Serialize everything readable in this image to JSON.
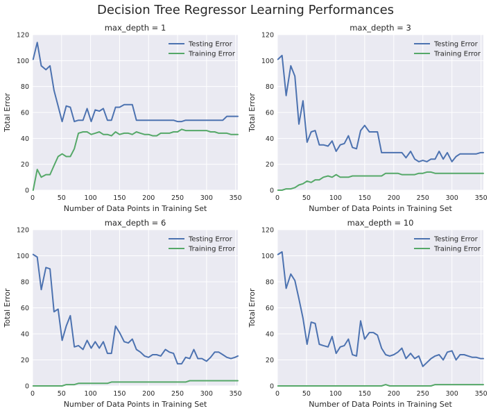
{
  "figure": {
    "title": "Decision Tree Regressor Learning Performances"
  },
  "chart_data": [
    {
      "type": "line",
      "title": "max_depth = 1",
      "xlabel": "Number of Data Points in Training Set",
      "ylabel": "Total Error",
      "xlim": [
        0,
        354
      ],
      "ylim": [
        0,
        120
      ],
      "xticks": [
        0,
        50,
        100,
        150,
        200,
        250,
        300,
        350
      ],
      "yticks": [
        0,
        20,
        40,
        60,
        80,
        100,
        120
      ],
      "grid": true,
      "legend": "top-right",
      "x": [
        1,
        8,
        15,
        23,
        30,
        37,
        44,
        51,
        58,
        65,
        72,
        79,
        87,
        94,
        101,
        108,
        115,
        122,
        129,
        136,
        143,
        150,
        158,
        165,
        172,
        179,
        186,
        193,
        200,
        207,
        214,
        221,
        229,
        236,
        243,
        250,
        257,
        264,
        271,
        278,
        285,
        292,
        300,
        307,
        314,
        321,
        328,
        335,
        342,
        349,
        354
      ],
      "series": [
        {
          "name": "Testing Error",
          "color": "#4c72b0",
          "values": [
            101,
            114,
            96,
            93,
            96,
            77,
            65,
            53,
            65,
            64,
            53,
            54,
            54,
            63,
            53,
            62,
            61,
            63,
            54,
            54,
            64,
            64,
            66,
            66,
            66,
            54,
            54,
            54,
            54,
            54,
            54,
            54,
            54,
            54,
            54,
            53,
            53,
            54,
            54,
            54,
            54,
            54,
            54,
            54,
            54,
            54,
            54,
            57,
            57,
            57,
            57
          ]
        },
        {
          "name": "Training Error",
          "color": "#55a868",
          "values": [
            0,
            16,
            10,
            12,
            12,
            19,
            26,
            28,
            26,
            26,
            32,
            44,
            45,
            45,
            43,
            44,
            45,
            43,
            43,
            42,
            45,
            43,
            44,
            44,
            43,
            45,
            44,
            43,
            43,
            42,
            42,
            44,
            44,
            44,
            45,
            45,
            47,
            46,
            46,
            46,
            46,
            46,
            46,
            45,
            45,
            44,
            44,
            44,
            43,
            43,
            43
          ]
        }
      ]
    },
    {
      "type": "line",
      "title": "max_depth = 3",
      "xlabel": "Number of Data Points in Training Set",
      "ylabel": "Total Error",
      "xlim": [
        0,
        354
      ],
      "ylim": [
        0,
        120
      ],
      "xticks": [
        0,
        50,
        100,
        150,
        200,
        250,
        300,
        350
      ],
      "yticks": [
        0,
        20,
        40,
        60,
        80,
        100,
        120
      ],
      "grid": true,
      "legend": "top-right",
      "x": [
        1,
        8,
        15,
        23,
        30,
        37,
        44,
        51,
        58,
        65,
        72,
        79,
        87,
        94,
        101,
        108,
        115,
        122,
        129,
        136,
        143,
        150,
        158,
        165,
        172,
        179,
        186,
        193,
        200,
        207,
        214,
        221,
        229,
        236,
        243,
        250,
        257,
        264,
        271,
        278,
        285,
        292,
        300,
        307,
        314,
        321,
        328,
        335,
        342,
        349,
        354
      ],
      "series": [
        {
          "name": "Testing Error",
          "color": "#4c72b0",
          "values": [
            101,
            104,
            73,
            96,
            88,
            51,
            69,
            37,
            45,
            46,
            35,
            35,
            34,
            38,
            30,
            35,
            36,
            42,
            33,
            32,
            46,
            50,
            45,
            45,
            45,
            29,
            29,
            29,
            29,
            29,
            29,
            25,
            30,
            24,
            22,
            23,
            22,
            24,
            24,
            30,
            24,
            29,
            22,
            26,
            28,
            28,
            28,
            28,
            28,
            29,
            29
          ]
        },
        {
          "name": "Training Error",
          "color": "#55a868",
          "values": [
            0,
            0,
            1,
            1,
            2,
            4,
            5,
            7,
            6,
            8,
            8,
            10,
            11,
            10,
            12,
            10,
            10,
            10,
            11,
            11,
            11,
            11,
            11,
            11,
            11,
            11,
            13,
            13,
            13,
            13,
            12,
            12,
            12,
            12,
            13,
            13,
            14,
            14,
            13,
            13,
            13,
            13,
            13,
            13,
            13,
            13,
            13,
            13,
            13,
            13,
            13
          ]
        }
      ]
    },
    {
      "type": "line",
      "title": "max_depth = 6",
      "xlabel": "Number of Data Points in Training Set",
      "ylabel": "Total Error",
      "xlim": [
        0,
        354
      ],
      "ylim": [
        0,
        120
      ],
      "xticks": [
        0,
        50,
        100,
        150,
        200,
        250,
        300,
        350
      ],
      "yticks": [
        0,
        20,
        40,
        60,
        80,
        100,
        120
      ],
      "grid": true,
      "legend": "top-right",
      "x": [
        1,
        8,
        15,
        23,
        30,
        37,
        44,
        51,
        58,
        65,
        72,
        79,
        87,
        94,
        101,
        108,
        115,
        122,
        129,
        136,
        143,
        150,
        158,
        165,
        172,
        179,
        186,
        193,
        200,
        207,
        214,
        221,
        229,
        236,
        243,
        250,
        257,
        264,
        271,
        278,
        285,
        292,
        300,
        307,
        314,
        321,
        328,
        335,
        342,
        349,
        354
      ],
      "series": [
        {
          "name": "Testing Error",
          "color": "#4c72b0",
          "values": [
            101,
            99,
            74,
            91,
            90,
            57,
            59,
            35,
            46,
            54,
            30,
            31,
            28,
            35,
            29,
            34,
            29,
            34,
            25,
            25,
            46,
            41,
            34,
            33,
            36,
            28,
            26,
            23,
            22,
            24,
            24,
            23,
            28,
            26,
            25,
            17,
            17,
            22,
            21,
            28,
            21,
            21,
            19,
            22,
            26,
            26,
            24,
            22,
            21,
            22,
            23
          ]
        },
        {
          "name": "Training Error",
          "color": "#55a868",
          "values": [
            0,
            0,
            0,
            0,
            0,
            0,
            0,
            0,
            1,
            1,
            1,
            2,
            2,
            2,
            2,
            2,
            2,
            2,
            2,
            3,
            3,
            3,
            3,
            3,
            3,
            3,
            3,
            3,
            3,
            3,
            3,
            3,
            3,
            3,
            3,
            3,
            3,
            3,
            4,
            4,
            4,
            4,
            4,
            4,
            4,
            4,
            4,
            4,
            4,
            4,
            4
          ]
        }
      ]
    },
    {
      "type": "line",
      "title": "max_depth = 10",
      "xlabel": "Number of Data Points in Training Set",
      "ylabel": "Total Error",
      "xlim": [
        0,
        354
      ],
      "ylim": [
        0,
        120
      ],
      "xticks": [
        0,
        50,
        100,
        150,
        200,
        250,
        300,
        350
      ],
      "yticks": [
        0,
        20,
        40,
        60,
        80,
        100,
        120
      ],
      "grid": true,
      "legend": "top-right",
      "x": [
        1,
        8,
        15,
        23,
        30,
        37,
        44,
        51,
        58,
        65,
        72,
        79,
        87,
        94,
        101,
        108,
        115,
        122,
        129,
        136,
        143,
        150,
        158,
        165,
        172,
        179,
        186,
        193,
        200,
        207,
        214,
        221,
        229,
        236,
        243,
        250,
        257,
        264,
        271,
        278,
        285,
        292,
        300,
        307,
        314,
        321,
        328,
        335,
        342,
        349,
        354
      ],
      "series": [
        {
          "name": "Testing Error",
          "color": "#4c72b0",
          "values": [
            101,
            103,
            75,
            86,
            81,
            67,
            52,
            32,
            49,
            48,
            32,
            31,
            30,
            38,
            25,
            30,
            31,
            36,
            24,
            23,
            50,
            36,
            41,
            41,
            39,
            29,
            24,
            23,
            24,
            26,
            29,
            21,
            25,
            21,
            23,
            15,
            18,
            21,
            23,
            24,
            20,
            26,
            27,
            20,
            24,
            24,
            23,
            22,
            22,
            21,
            21
          ]
        },
        {
          "name": "Training Error",
          "color": "#55a868",
          "values": [
            0,
            0,
            0,
            0,
            0,
            0,
            0,
            0,
            0,
            0,
            0,
            0,
            0,
            0,
            0,
            0,
            0,
            0,
            0,
            0,
            0,
            0,
            0,
            0,
            0,
            0,
            1,
            0,
            0,
            0,
            0,
            0,
            0,
            0,
            0,
            0,
            0,
            0,
            1,
            1,
            1,
            1,
            1,
            1,
            1,
            1,
            1,
            1,
            1,
            1,
            1
          ]
        }
      ]
    }
  ]
}
